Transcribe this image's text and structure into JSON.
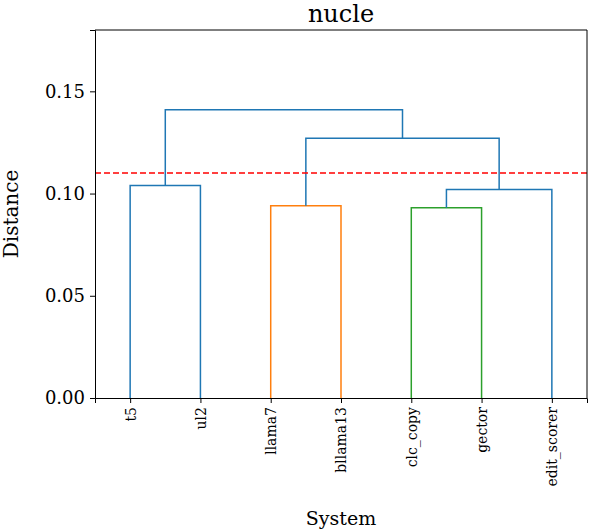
{
  "chart_data": {
    "type": "dendrogram",
    "title": "nucle",
    "x_label": "System",
    "y_label": "Distance",
    "ylim": [
      0,
      0.18
    ],
    "yticks": [
      {
        "value": 0,
        "label": "0.00"
      },
      {
        "value": 0.05,
        "label": "0.05"
      },
      {
        "value": 0.1,
        "label": "0.10"
      },
      {
        "value": 0.15,
        "label": "0.15"
      }
    ],
    "threshold": {
      "value": 0.11,
      "color": "#ff0000",
      "line_style": "dashed"
    },
    "tree": {
      "height": 0.141,
      "color": "#1f77b4",
      "children": [
        {
          "height": 0.104,
          "color": "#1f77b4",
          "children": [
            {
              "name": "t5"
            },
            {
              "name": "ul2"
            }
          ]
        },
        {
          "height": 0.127,
          "color": "#1f77b4",
          "children": [
            {
              "height": 0.094,
              "color": "#ff7f0e",
              "children": [
                {
                  "name": "llama7"
                },
                {
                  "name": "bllama13"
                }
              ]
            },
            {
              "height": 0.102,
              "color": "#1f77b4",
              "children": [
                {
                  "height": 0.093,
                  "color": "#2ca02c",
                  "children": [
                    {
                      "name": "clc_copy"
                    },
                    {
                      "name": "gector"
                    }
                  ]
                },
                {
                  "name": "edit_scorer"
                }
              ]
            }
          ]
        }
      ]
    }
  }
}
